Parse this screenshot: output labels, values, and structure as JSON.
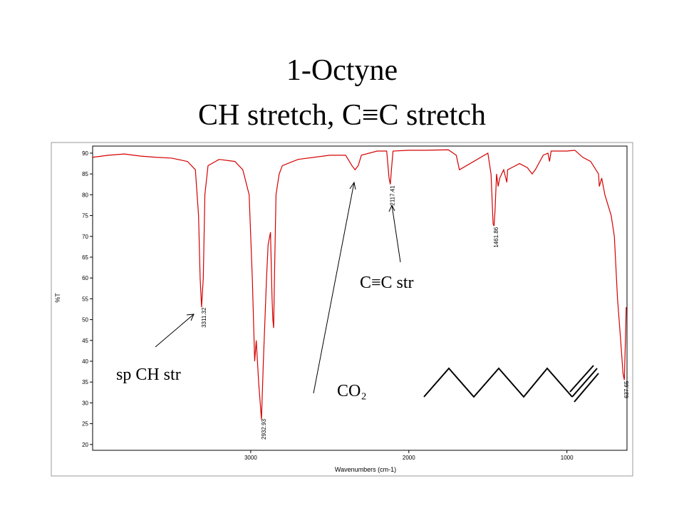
{
  "chart_data": {
    "type": "line",
    "title": "1-Octyne",
    "subtitle": "CH stretch, C≡C stretch",
    "x_label": "Wavenumbers (cm-1)",
    "y_label": "%T",
    "x": [
      4000,
      3900,
      3800,
      3700,
      3600,
      3500,
      3400,
      3350,
      3330,
      3320,
      3311,
      3300,
      3290,
      3270,
      3200,
      3100,
      3050,
      3010,
      2990,
      2975,
      2965,
      2950,
      2932,
      2920,
      2900,
      2890,
      2875,
      2865,
      2860,
      2855,
      2850,
      2840,
      2820,
      2800,
      2700,
      2500,
      2400,
      2360,
      2340,
      2320,
      2300,
      2200,
      2140,
      2125,
      2117,
      2110,
      2100,
      2000,
      1900,
      1750,
      1700,
      1680,
      1500,
      1480,
      1467,
      1461,
      1455,
      1445,
      1435,
      1425,
      1400,
      1380,
      1375,
      1350,
      1300,
      1250,
      1220,
      1200,
      1150,
      1120,
      1110,
      1100,
      1000,
      950,
      900,
      850,
      800,
      795,
      780,
      760,
      720,
      700,
      680,
      660,
      645,
      637,
      630,
      625
    ],
    "series": [
      {
        "name": "1-Octyne",
        "color": "#d40000",
        "values": [
          89,
          89.5,
          89.8,
          89.3,
          89,
          88.8,
          88,
          86,
          75,
          60,
          53,
          60,
          80,
          87,
          88.5,
          88,
          86,
          80,
          60,
          40,
          45,
          35,
          26,
          40,
          60,
          68,
          71,
          55,
          50,
          48,
          60,
          80,
          85,
          87,
          88.5,
          89.5,
          89.5,
          87,
          86,
          87,
          89.5,
          90.5,
          90.5,
          84,
          82.5,
          86,
          90.5,
          90.7,
          90.7,
          90.8,
          89.5,
          86,
          90,
          85,
          73,
          72.5,
          76,
          85,
          82,
          84,
          86,
          83,
          86,
          86.5,
          87.5,
          86.5,
          85,
          86,
          89.5,
          90,
          88,
          90.5,
          90.5,
          90.7,
          89,
          88,
          85,
          82,
          84,
          80,
          75,
          70,
          55,
          45,
          37,
          35.5,
          45,
          53
        ]
      }
    ],
    "peak_labels": [
      3311.32,
      2932.93,
      2117.41,
      1461.86,
      637.65
    ],
    "xlim": [
      4000,
      620
    ],
    "ylim": [
      18.6,
      91.7
    ],
    "xticks": [
      3000,
      2000,
      1000
    ],
    "yticks": [
      20,
      25,
      30,
      35,
      40,
      45,
      50,
      55,
      60,
      65,
      70,
      75,
      80,
      85,
      90
    ],
    "annotations": [
      "sp CH str",
      "C≡C str",
      "CO₂"
    ]
  }
}
